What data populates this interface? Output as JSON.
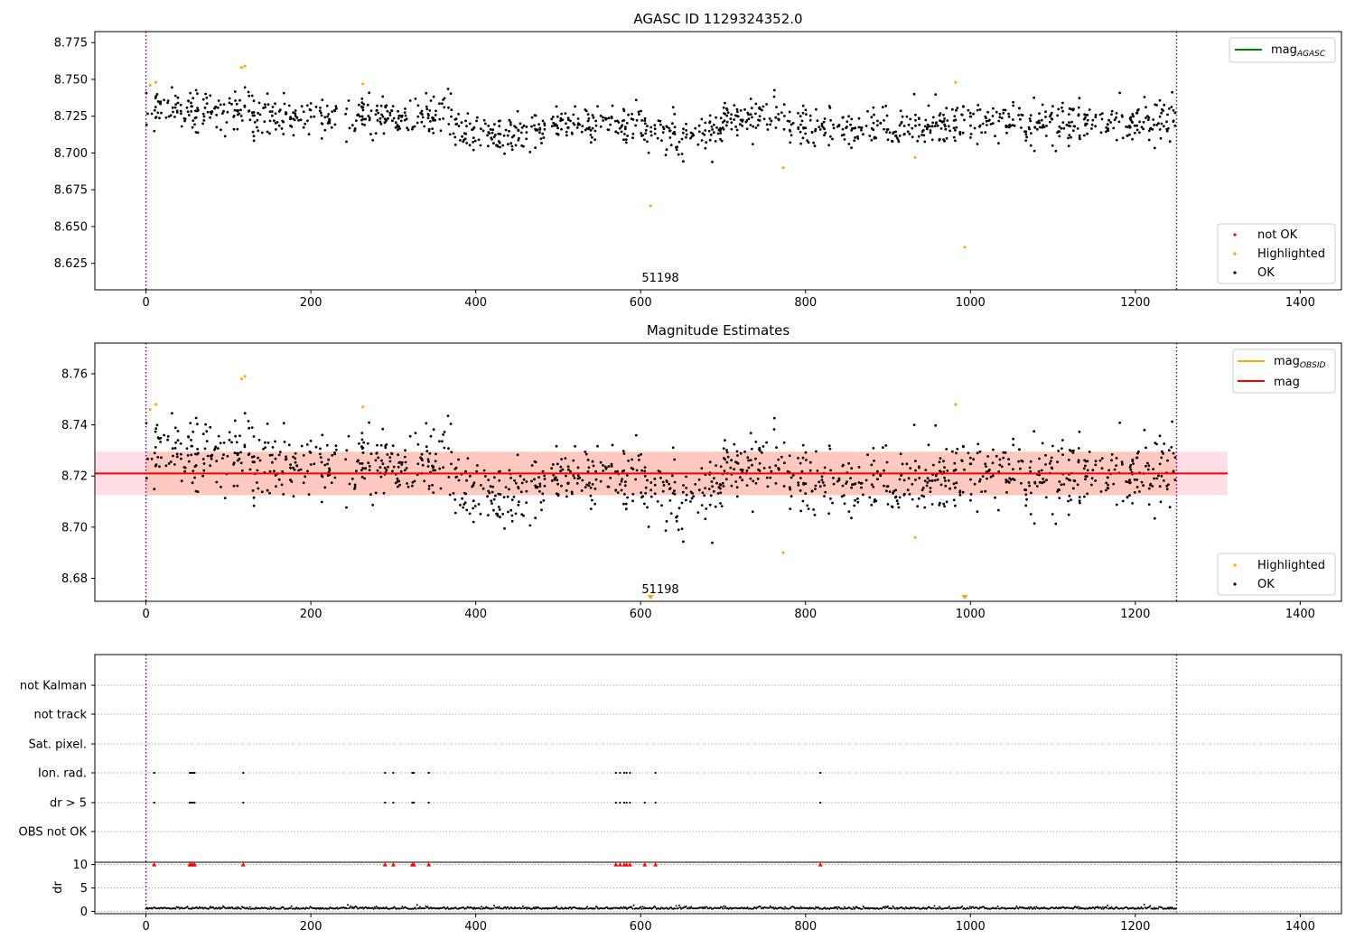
{
  "chart_data": [
    {
      "type": "scatter",
      "title": "AGASC ID 1129324352.0",
      "xlim": [
        -62,
        1450
      ],
      "ylim": [
        8.607,
        8.7825
      ],
      "x_ticks": [
        "0",
        "200",
        "400",
        "600",
        "800",
        "1000",
        "1200",
        "1400"
      ],
      "y_ticks": [
        "8.625",
        "8.650",
        "8.675",
        "8.700",
        "8.725",
        "8.750",
        "8.775"
      ],
      "vlines": [
        0,
        1250
      ],
      "legend_upper": [
        {
          "label": "mag",
          "sub": "AGASC",
          "color": "#008000"
        }
      ],
      "legend_lower": [
        {
          "label": "not OK",
          "color": "#ff0000"
        },
        {
          "label": "Highlighted",
          "color": "#ffa500"
        },
        {
          "label": "OK",
          "color": "#000000"
        }
      ],
      "annotation": {
        "text": "51198",
        "x": 624
      },
      "series": [
        {
          "name": "OK",
          "color": "#000000",
          "segments": [
            {
              "x0": 0,
              "x1": 130,
              "mean": 8.729
            },
            {
              "x0": 130,
              "x1": 380,
              "mean": 8.725
            },
            {
              "x0": 380,
              "x1": 490,
              "mean": 8.714
            },
            {
              "x0": 490,
              "x1": 600,
              "mean": 8.721
            },
            {
              "x0": 600,
              "x1": 700,
              "mean": 8.715
            },
            {
              "x0": 700,
              "x1": 780,
              "mean": 8.724
            },
            {
              "x0": 780,
              "x1": 985,
              "mean": 8.718
            },
            {
              "x0": 985,
              "x1": 1250,
              "mean": 8.721
            }
          ],
          "spread": 0.007
        },
        {
          "name": "Highlighted",
          "color": "#ffa500",
          "points": [
            [
              5,
              8.746
            ],
            [
              12,
              8.748
            ],
            [
              116,
              8.758
            ],
            [
              120,
              8.759
            ],
            [
              263,
              8.747
            ],
            [
              612,
              8.664
            ],
            [
              773,
              8.69
            ],
            [
              933,
              8.697
            ],
            [
              982,
              8.748
            ],
            [
              993,
              8.636
            ]
          ]
        }
      ]
    },
    {
      "type": "scatter",
      "title": "Magnitude Estimates",
      "xlim": [
        -62,
        1450
      ],
      "ylim": [
        8.671,
        8.772
      ],
      "x_ticks": [
        "0",
        "200",
        "400",
        "600",
        "800",
        "1000",
        "1200",
        "1400"
      ],
      "y_ticks": [
        "8.68",
        "8.70",
        "8.72",
        "8.74",
        "8.76"
      ],
      "vlines": [
        0,
        1250
      ],
      "mag_line": 8.721,
      "mag_band": [
        8.7125,
        8.7295
      ],
      "legend_upper": [
        {
          "label": "mag",
          "sub": "OBSID",
          "color": "#ffa500"
        },
        {
          "label": "mag",
          "color": "#ff0000"
        }
      ],
      "legend_lower": [
        {
          "label": "Highlighted",
          "color": "#ffa500"
        },
        {
          "label": "OK",
          "color": "#000000"
        }
      ],
      "annotation": {
        "text": "51198",
        "x": 624
      },
      "triangles": [
        612,
        993
      ],
      "series": [
        {
          "name": "Highlighted",
          "color": "#ffa500",
          "points": [
            [
              5,
              8.746
            ],
            [
              12,
              8.748
            ],
            [
              116,
              8.758
            ],
            [
              120,
              8.759
            ],
            [
              263,
              8.747
            ],
            [
              773,
              8.69
            ],
            [
              933,
              8.696
            ],
            [
              982,
              8.748
            ]
          ]
        }
      ]
    },
    {
      "type": "scatter",
      "categories": [
        "not Kalman",
        "not track",
        "Sat. pixel.",
        "Ion. rad.",
        "dr > 5",
        "OBS not OK"
      ],
      "xlim": [
        -62,
        1450
      ],
      "flag_x": [
        10,
        53,
        55,
        57,
        59,
        118,
        290,
        300,
        323,
        325,
        343,
        570,
        575,
        580,
        583,
        587,
        605,
        618,
        818
      ],
      "ion_rad_x": [
        10,
        53,
        55,
        57,
        59,
        118,
        290,
        300,
        323,
        325,
        343,
        570,
        575,
        580,
        583,
        587,
        618,
        818
      ],
      "dr_ylabel": "dr",
      "dr_ticks": [
        "0",
        "5",
        "10"
      ],
      "dr_ylim": [
        -0.5,
        10.5
      ],
      "dr_baseline": 0.5,
      "x_ticks": [
        "0",
        "200",
        "400",
        "600",
        "800",
        "1000",
        "1200",
        "1400"
      ],
      "vlines": [
        0,
        1250
      ]
    }
  ]
}
